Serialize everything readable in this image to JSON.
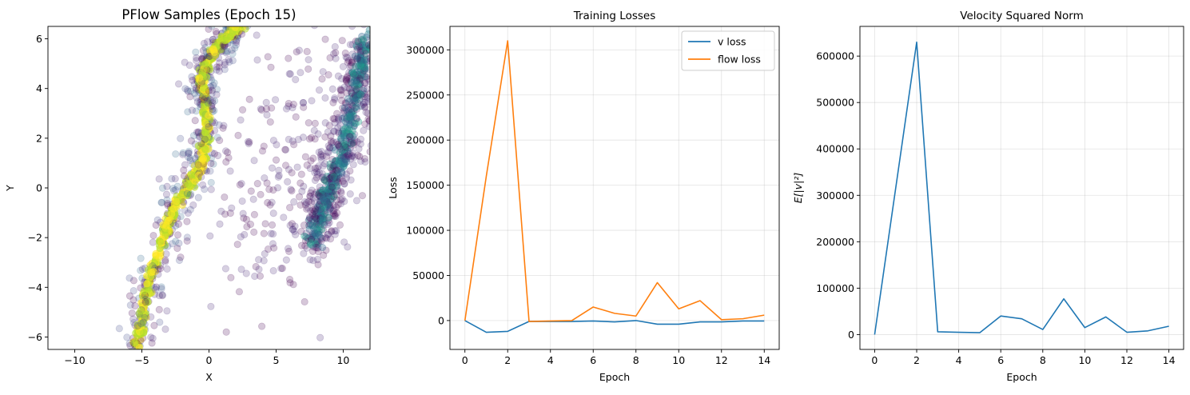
{
  "chart_data": [
    {
      "type": "scatter",
      "title": "PFlow Samples (Epoch 15)",
      "xlabel": "X",
      "ylabel": "Y",
      "xlim": [
        -12,
        12
      ],
      "ylim": [
        -6.5,
        6.5
      ],
      "xticks": [
        -10,
        -5,
        0,
        5,
        10
      ],
      "yticks": [
        -6,
        -4,
        -2,
        0,
        2,
        4,
        6
      ],
      "colormap": "viridis",
      "grid": false,
      "clusters": [
        {
          "name": "left-curved-band",
          "points": [
            [
              -5.4,
              -6.4
            ],
            [
              -4.9,
              -5.0
            ],
            [
              -4.3,
              -3.5
            ],
            [
              -3.3,
              -1.8
            ],
            [
              -2.4,
              -0.6
            ],
            [
              -1.2,
              0.3
            ],
            [
              -0.4,
              1.2
            ],
            [
              -0.2,
              2.5
            ],
            [
              -0.3,
              3.6
            ],
            [
              -0.6,
              4.5
            ],
            [
              0.1,
              5.3
            ],
            [
              1.2,
              6.0
            ],
            [
              2.3,
              6.5
            ]
          ],
          "spread": 0.45,
          "density": "high"
        },
        {
          "name": "right-band",
          "points": [
            [
              7.8,
              -2.2
            ],
            [
              8.5,
              -0.8
            ],
            [
              9.4,
              0.6
            ],
            [
              10.3,
              2.2
            ],
            [
              11.0,
              4.0
            ],
            [
              11.6,
              6.0
            ]
          ],
          "spread": 0.75,
          "density": "medium"
        },
        {
          "name": "scattered-middle",
          "points": [
            [
              2.5,
              -3.0
            ],
            [
              4.5,
              -1.5
            ],
            [
              6.0,
              0.5
            ],
            [
              3.0,
              1.0
            ],
            [
              6.5,
              4.5
            ],
            [
              7.5,
              3.5
            ]
          ],
          "spread": 2.0,
          "density": "low"
        }
      ]
    },
    {
      "type": "line",
      "title": "Training Losses",
      "xlabel": "Epoch",
      "ylabel": "Loss",
      "x": [
        0,
        1,
        2,
        3,
        4,
        5,
        6,
        7,
        8,
        9,
        10,
        11,
        12,
        13,
        14
      ],
      "xlim": [
        -0.7,
        14.7
      ],
      "ylim": [
        -32000,
        326000
      ],
      "xticks": [
        0,
        2,
        4,
        6,
        8,
        10,
        12,
        14
      ],
      "yticks": [
        0,
        50000,
        100000,
        150000,
        200000,
        250000,
        300000
      ],
      "grid": true,
      "legend": "top-right",
      "series": [
        {
          "name": "v loss",
          "color": "#1f77b4",
          "values": [
            0,
            -13000,
            -12000,
            -1000,
            -1000,
            -1000,
            -500,
            -1500,
            0,
            -4000,
            -4000,
            -1500,
            -1500,
            -500,
            -500
          ]
        },
        {
          "name": "flow loss",
          "color": "#ff7f0e",
          "values": [
            0,
            160000,
            310000,
            -1000,
            -500,
            0,
            15000,
            8000,
            5000,
            42000,
            13000,
            22000,
            1000,
            2000,
            6000
          ]
        }
      ]
    },
    {
      "type": "line",
      "title": "Velocity Squared Norm",
      "xlabel": "Epoch",
      "ylabel": "E[|v|²]",
      "x": [
        0,
        1,
        2,
        3,
        4,
        5,
        6,
        7,
        8,
        9,
        10,
        11,
        12,
        13,
        14
      ],
      "xlim": [
        -0.7,
        14.7
      ],
      "ylim": [
        -32000,
        664000
      ],
      "xticks": [
        0,
        2,
        4,
        6,
        8,
        10,
        12,
        14
      ],
      "yticks": [
        0,
        100000,
        200000,
        300000,
        400000,
        500000,
        600000
      ],
      "grid": true,
      "series": [
        {
          "color": "#1f77b4",
          "values": [
            0,
            315000,
            630000,
            6000,
            5000,
            4000,
            40000,
            34000,
            11000,
            77000,
            15000,
            38000,
            5000,
            8000,
            18000
          ]
        }
      ]
    }
  ]
}
